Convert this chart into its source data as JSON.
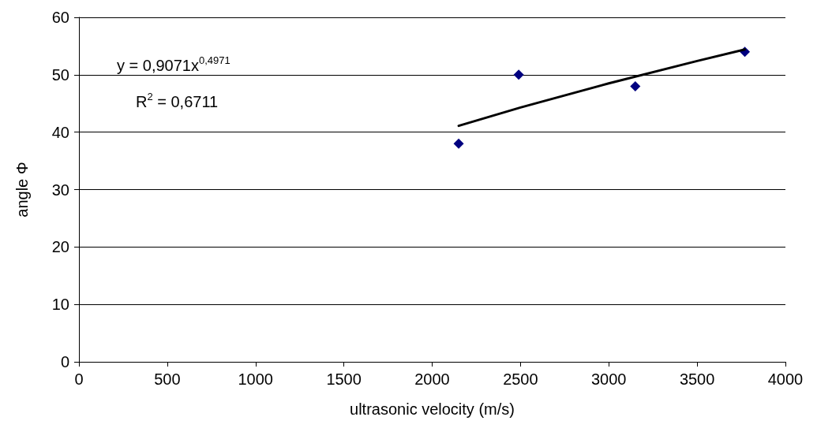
{
  "chart_data": {
    "type": "scatter",
    "xlabel": "ultrasonic velocity (m/s)",
    "ylabel": "angle Φ",
    "xlim": [
      0,
      4000
    ],
    "xticks": [
      0,
      500,
      1000,
      1500,
      2000,
      2500,
      3000,
      3500,
      4000
    ],
    "ylim": [
      0,
      60
    ],
    "yticks": [
      0,
      10,
      20,
      30,
      40,
      50,
      60
    ],
    "grid": "y",
    "marker": "diamond",
    "series": [
      {
        "color": "#000080",
        "x": [
          2150,
          2490,
          3150,
          3770
        ],
        "values": [
          38,
          50,
          48,
          54
        ]
      },
      {
        "type": "line",
        "color": "#000000",
        "marker": "none",
        "line_style": "solid",
        "x": [
          2150,
          2500,
          3000,
          3500,
          3770
        ],
        "values": [
          41.1,
          44.3,
          48.5,
          52.4,
          54.4
        ]
      }
    ],
    "annotations": [
      "y = 0,9071x$^{0,4971}$",
      "R$^{2}$ = 0,6711"
    ]
  }
}
